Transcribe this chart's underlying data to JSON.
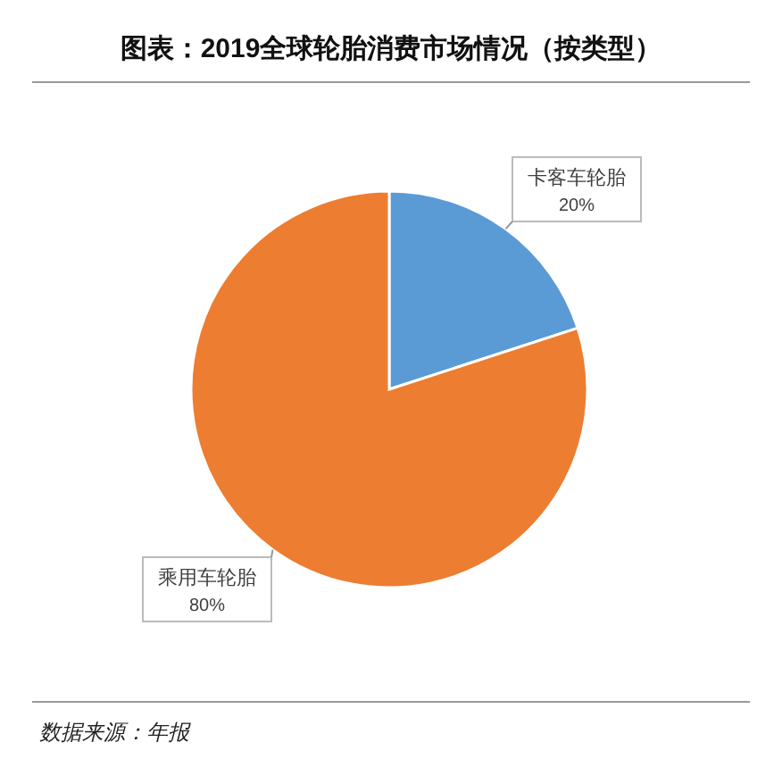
{
  "chart_data": {
    "type": "pie",
    "title": "图表：2019全球轮胎消费市场情况（按类型）",
    "categories": [
      "卡客车轮胎",
      "乘用车轮胎"
    ],
    "values": [
      20,
      80
    ],
    "colors": [
      "#5b9bd5",
      "#ed7d31"
    ],
    "value_labels": [
      "20%",
      "80%"
    ],
    "annotations": [
      "数据来源：年报"
    ]
  }
}
